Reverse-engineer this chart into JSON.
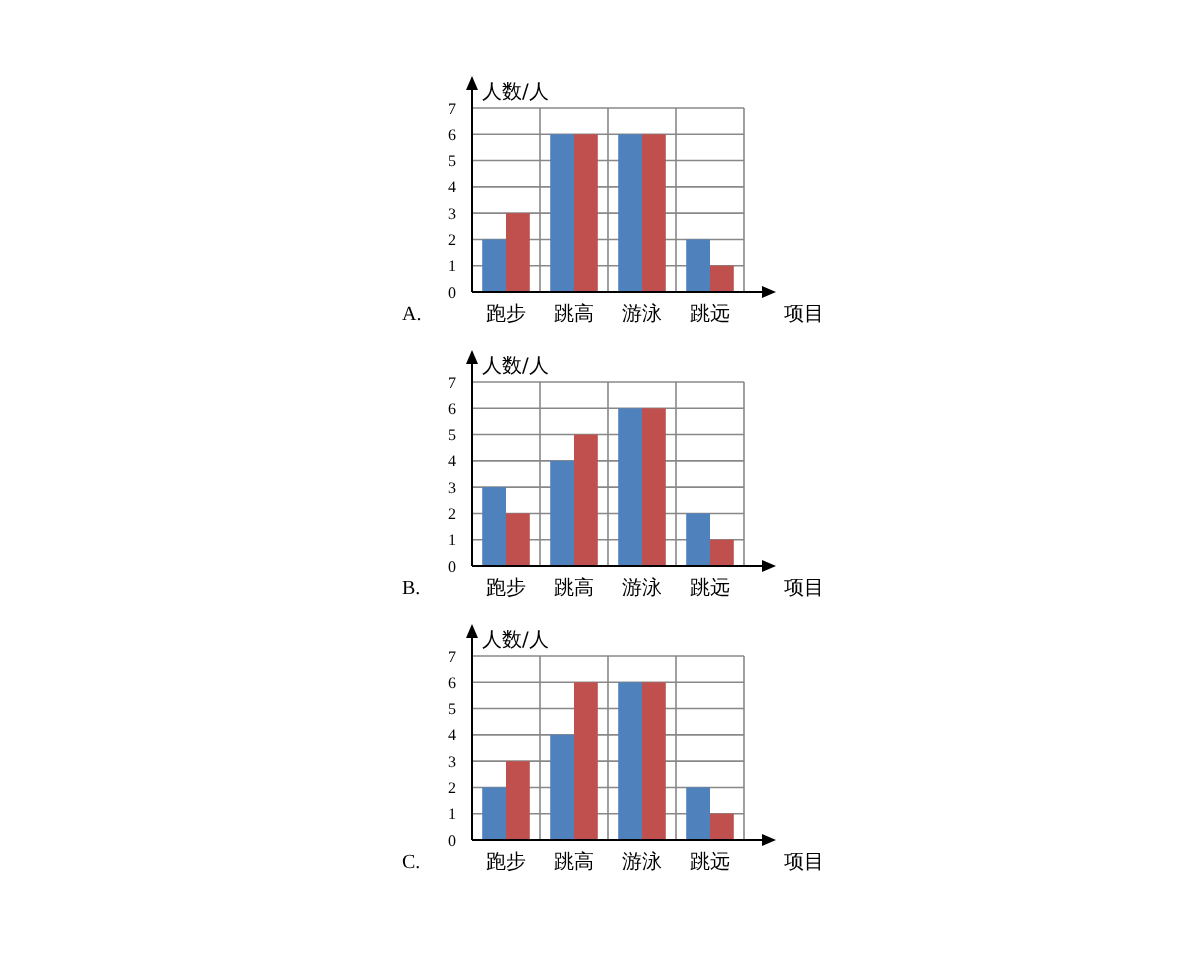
{
  "chart_data": [
    {
      "type": "bar",
      "title": "A.",
      "xlabel": "项目",
      "ylabel": "人数/人",
      "categories": [
        "跑步",
        "跳高",
        "游泳",
        "跳远"
      ],
      "series": [
        {
          "color": "#4f81bd",
          "values": [
            2,
            6,
            6,
            2
          ]
        },
        {
          "color": "#c0504d",
          "values": [
            3,
            6,
            6,
            1
          ]
        }
      ],
      "ylim": [
        0,
        7
      ],
      "yticks": [
        0,
        1,
        2,
        3,
        4,
        5,
        6,
        7
      ],
      "grid": true
    },
    {
      "type": "bar",
      "title": "B.",
      "xlabel": "项目",
      "ylabel": "人数/人",
      "categories": [
        "跑步",
        "跳高",
        "游泳",
        "跳远"
      ],
      "series": [
        {
          "color": "#4f81bd",
          "values": [
            3,
            4,
            6,
            2
          ]
        },
        {
          "color": "#c0504d",
          "values": [
            2,
            5,
            6,
            1
          ]
        }
      ],
      "ylim": [
        0,
        7
      ],
      "yticks": [
        0,
        1,
        2,
        3,
        4,
        5,
        6,
        7
      ],
      "grid": true
    },
    {
      "type": "bar",
      "title": "C.",
      "xlabel": "项目",
      "ylabel": "人数/人",
      "categories": [
        "跑步",
        "跳高",
        "游泳",
        "跳远"
      ],
      "series": [
        {
          "color": "#4f81bd",
          "values": [
            2,
            4,
            6,
            2
          ]
        },
        {
          "color": "#c0504d",
          "values": [
            3,
            6,
            6,
            1
          ]
        }
      ],
      "ylim": [
        0,
        7
      ],
      "yticks": [
        0,
        1,
        2,
        3,
        4,
        5,
        6,
        7
      ],
      "grid": true
    }
  ]
}
